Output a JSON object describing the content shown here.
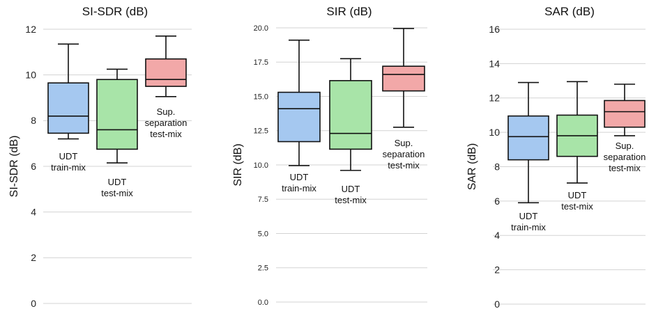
{
  "chart_data": [
    {
      "type": "box",
      "title": "SI-SDR (dB)",
      "ylabel": "SI-SDR (dB)",
      "ylim": [
        0,
        12
      ],
      "yticks": [
        "0",
        "2",
        "4",
        "6",
        "8",
        "10",
        "12"
      ],
      "grid": true,
      "boxes": [
        {
          "label_lines": [
            "UDT",
            "train-mix"
          ],
          "color": "#a5c8f0",
          "min": 7.2,
          "q1": 7.45,
          "median": 8.2,
          "q3": 9.65,
          "max": 11.35
        },
        {
          "label_lines": [
            "UDT",
            "test-mix"
          ],
          "color": "#a8e4a8",
          "min": 6.15,
          "q1": 6.75,
          "median": 7.6,
          "q3": 9.8,
          "max": 10.25
        },
        {
          "label_lines": [
            "Sup.",
            "separation",
            "test-mix"
          ],
          "color": "#f2a8a8",
          "min": 9.05,
          "q1": 9.5,
          "median": 9.8,
          "q3": 10.7,
          "max": 11.7
        }
      ]
    },
    {
      "type": "box",
      "title": "SIR (dB)",
      "ylabel": "SIR (dB)",
      "ylim": [
        0,
        20
      ],
      "yticks": [
        "0.0",
        "2.5",
        "5.0",
        "7.5",
        "10.0",
        "12.5",
        "15.0",
        "17.5",
        "20.0"
      ],
      "grid": true,
      "boxes": [
        {
          "label_lines": [
            "UDT",
            "train-mix"
          ],
          "color": "#a5c8f0",
          "min": 9.95,
          "q1": 11.7,
          "median": 14.1,
          "q3": 15.3,
          "max": 19.1
        },
        {
          "label_lines": [
            "UDT",
            "test-mix"
          ],
          "color": "#a8e4a8",
          "min": 9.6,
          "q1": 11.15,
          "median": 12.3,
          "q3": 16.15,
          "max": 17.75
        },
        {
          "label_lines": [
            "Sup.",
            "separation",
            "test-mix"
          ],
          "color": "#f2a8a8",
          "min": 12.75,
          "q1": 15.4,
          "median": 16.6,
          "q3": 17.2,
          "max": 19.95
        }
      ]
    },
    {
      "type": "box",
      "title": "SAR (dB)",
      "ylabel": "SAR (dB)",
      "ylim": [
        0,
        16
      ],
      "yticks": [
        "0",
        "2",
        "4",
        "6",
        "8",
        "10",
        "12",
        "14",
        "16"
      ],
      "grid": true,
      "boxes": [
        {
          "label_lines": [
            "UDT",
            "train-mix"
          ],
          "color": "#a5c8f0",
          "min": 5.9,
          "q1": 8.4,
          "median": 9.75,
          "q3": 10.95,
          "max": 12.9
        },
        {
          "label_lines": [
            "UDT",
            "test-mix"
          ],
          "color": "#a8e4a8",
          "min": 7.05,
          "q1": 8.6,
          "median": 9.8,
          "q3": 11.0,
          "max": 12.95
        },
        {
          "label_lines": [
            "Sup.",
            "separation",
            "test-mix"
          ],
          "color": "#f2a8a8",
          "min": 9.8,
          "q1": 10.3,
          "median": 11.2,
          "q3": 11.85,
          "max": 12.8
        }
      ]
    }
  ]
}
